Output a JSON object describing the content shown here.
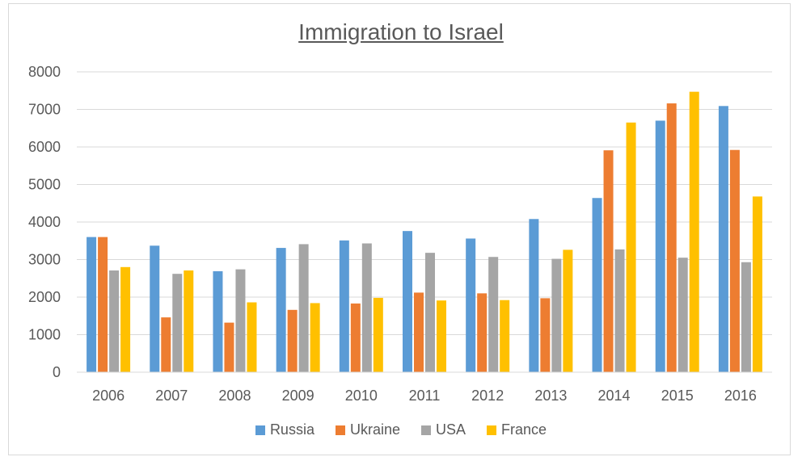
{
  "chart_data": {
    "type": "bar",
    "title": "Immigration to Israel",
    "xlabel": "",
    "ylabel": "",
    "ylim": [
      0,
      8000
    ],
    "yticks": [
      0,
      1000,
      2000,
      3000,
      4000,
      5000,
      6000,
      7000,
      8000
    ],
    "grid": true,
    "legend": "bottom",
    "categories": [
      "2006",
      "2007",
      "2008",
      "2009",
      "2010",
      "2011",
      "2012",
      "2013",
      "2014",
      "2015",
      "2016"
    ],
    "series": [
      {
        "name": "Russia",
        "color": "#5b9bd5",
        "values": [
          3600,
          3370,
          2690,
          3310,
          3510,
          3760,
          3560,
          4080,
          4640,
          6700,
          7090
        ]
      },
      {
        "name": "Ukraine",
        "color": "#ed7d31",
        "values": [
          3600,
          1460,
          1320,
          1660,
          1830,
          2120,
          2100,
          1970,
          5910,
          7160,
          5920
        ]
      },
      {
        "name": "USA",
        "color": "#a5a5a5",
        "values": [
          2710,
          2620,
          2740,
          3410,
          3430,
          3180,
          3070,
          3020,
          3270,
          3050,
          2930
        ]
      },
      {
        "name": "France",
        "color": "#ffc000",
        "values": [
          2800,
          2710,
          1860,
          1840,
          1980,
          1910,
          1920,
          3260,
          6650,
          7470,
          4680
        ]
      }
    ]
  }
}
